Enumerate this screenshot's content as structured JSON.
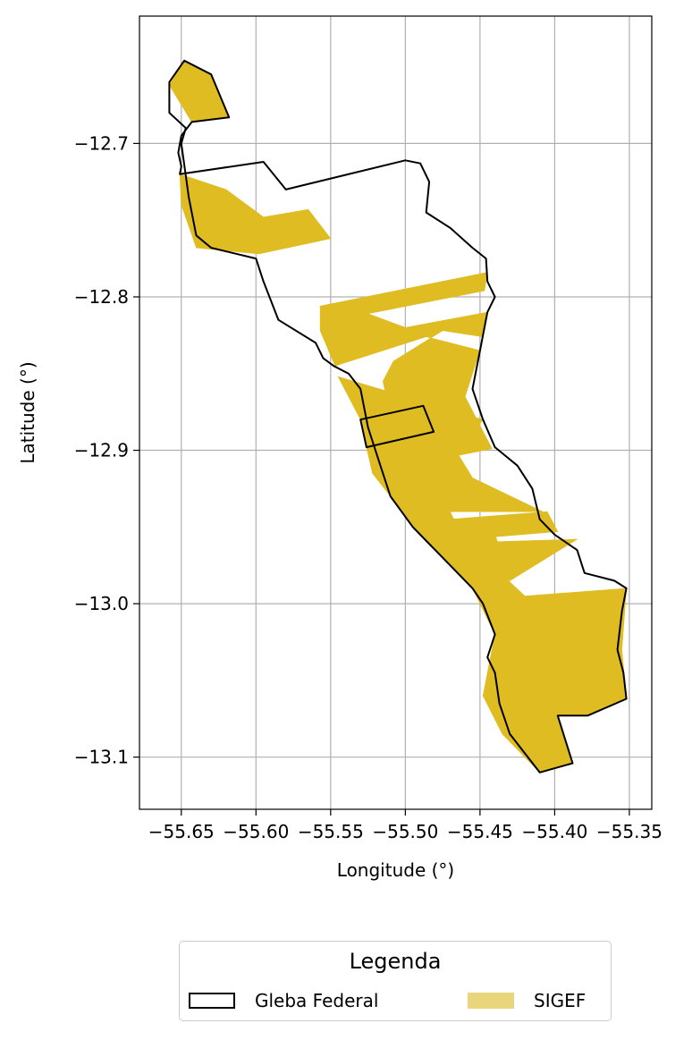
{
  "chart_data": {
    "type": "map",
    "xlabel": "Longitude (°)",
    "ylabel": "Latitude (°)",
    "xlim": [
      -55.678,
      -55.335
    ],
    "ylim": [
      -13.134,
      -12.617
    ],
    "xticks": [
      -55.65,
      -55.6,
      -55.55,
      -55.5,
      -55.45,
      -55.4,
      -55.35
    ],
    "xtick_labels": [
      "−55.65",
      "−55.60",
      "−55.55",
      "−55.50",
      "−55.45",
      "−55.40",
      "−55.35"
    ],
    "yticks": [
      -12.7,
      -12.8,
      -12.9,
      -13.0,
      -13.1
    ],
    "ytick_labels": [
      "−12.7",
      "−12.8",
      "−12.9",
      "−13.0",
      "−13.1"
    ],
    "grid": true,
    "colors": {
      "sigef_fill": "#dfbc22",
      "sigef_legend": "#ead67a",
      "gleba_edge": "#000000",
      "grid": "#b0b0b0"
    },
    "legend": {
      "title": "Legenda",
      "placement": "bottom-outside",
      "entries": [
        {
          "label": "Gleba Federal",
          "style": "outline"
        },
        {
          "label": "SIGEF",
          "style": "fill"
        }
      ]
    },
    "layers": {
      "gleba_federal": [
        [
          [
            -55.648,
            -12.646
          ],
          [
            -55.63,
            -12.655
          ],
          [
            -55.618,
            -12.683
          ],
          [
            -55.643,
            -12.686
          ],
          [
            -55.65,
            -12.695
          ],
          [
            -55.652,
            -12.706
          ],
          [
            -55.65,
            -12.715
          ],
          [
            -55.651,
            -12.72
          ],
          [
            -55.595,
            -12.712
          ],
          [
            -55.58,
            -12.73
          ],
          [
            -55.5,
            -12.711
          ],
          [
            -55.49,
            -12.713
          ],
          [
            -55.484,
            -12.725
          ],
          [
            -55.486,
            -12.745
          ],
          [
            -55.47,
            -12.755
          ],
          [
            -55.455,
            -12.768
          ],
          [
            -55.446,
            -12.775
          ],
          [
            -55.445,
            -12.79
          ],
          [
            -55.44,
            -12.8
          ],
          [
            -55.445,
            -12.81
          ],
          [
            -55.45,
            -12.835
          ],
          [
            -55.455,
            -12.86
          ],
          [
            -55.448,
            -12.88
          ],
          [
            -55.44,
            -12.898
          ],
          [
            -55.425,
            -12.91
          ],
          [
            -55.415,
            -12.925
          ],
          [
            -55.41,
            -12.945
          ],
          [
            -55.4,
            -12.955
          ],
          [
            -55.385,
            -12.965
          ],
          [
            -55.38,
            -12.98
          ],
          [
            -55.36,
            -12.985
          ],
          [
            -55.352,
            -12.99
          ],
          [
            -55.355,
            -13.005
          ],
          [
            -55.358,
            -13.03
          ],
          [
            -55.354,
            -13.045
          ],
          [
            -55.352,
            -13.062
          ],
          [
            -55.378,
            -13.073
          ],
          [
            -55.398,
            -13.073
          ],
          [
            -55.388,
            -13.104
          ],
          [
            -55.41,
            -13.11
          ],
          [
            -55.43,
            -13.085
          ],
          [
            -55.437,
            -13.065
          ],
          [
            -55.44,
            -13.045
          ],
          [
            -55.445,
            -13.035
          ],
          [
            -55.44,
            -13.02
          ],
          [
            -55.448,
            -13.0
          ],
          [
            -55.455,
            -12.99
          ],
          [
            -55.47,
            -12.975
          ],
          [
            -55.485,
            -12.96
          ],
          [
            -55.495,
            -12.95
          ],
          [
            -55.51,
            -12.93
          ],
          [
            -55.515,
            -12.915
          ],
          [
            -55.52,
            -12.9
          ],
          [
            -55.525,
            -12.885
          ],
          [
            -55.53,
            -12.86
          ],
          [
            -55.538,
            -12.85
          ],
          [
            -55.548,
            -12.845
          ],
          [
            -55.555,
            -12.84
          ],
          [
            -55.56,
            -12.83
          ],
          [
            -55.585,
            -12.815
          ],
          [
            -55.595,
            -12.79
          ],
          [
            -55.6,
            -12.775
          ],
          [
            -55.63,
            -12.768
          ],
          [
            -55.64,
            -12.76
          ],
          [
            -55.645,
            -12.735
          ],
          [
            -55.65,
            -12.7
          ],
          [
            -55.647,
            -12.69
          ],
          [
            -55.658,
            -12.68
          ],
          [
            -55.658,
            -12.66
          ],
          [
            -55.648,
            -12.646
          ]
        ],
        [
          [
            -55.53,
            -12.88
          ],
          [
            -55.488,
            -12.871
          ],
          [
            -55.481,
            -12.888
          ],
          [
            -55.526,
            -12.898
          ],
          [
            -55.53,
            -12.88
          ]
        ]
      ],
      "sigef": [
        [
          [
            -55.648,
            -12.646
          ],
          [
            -55.63,
            -12.655
          ],
          [
            -55.618,
            -12.683
          ],
          [
            -55.643,
            -12.686
          ],
          [
            -55.658,
            -12.662
          ]
        ],
        [
          [
            -55.651,
            -12.72
          ],
          [
            -55.62,
            -12.73
          ],
          [
            -55.595,
            -12.748
          ],
          [
            -55.565,
            -12.743
          ],
          [
            -55.55,
            -12.762
          ],
          [
            -55.598,
            -12.772
          ],
          [
            -55.64,
            -12.768
          ],
          [
            -55.65,
            -12.74
          ]
        ],
        [
          [
            -55.557,
            -12.806
          ],
          [
            -55.445,
            -12.784
          ],
          [
            -55.447,
            -12.796
          ],
          [
            -55.525,
            -12.811
          ],
          [
            -55.5,
            -12.82
          ],
          [
            -55.445,
            -12.81
          ],
          [
            -55.448,
            -12.826
          ],
          [
            -55.475,
            -12.822
          ],
          [
            -55.508,
            -12.842
          ],
          [
            -55.515,
            -12.855
          ],
          [
            -55.512,
            -12.868
          ],
          [
            -55.522,
            -12.882
          ],
          [
            -55.526,
            -12.898
          ],
          [
            -55.48,
            -12.888
          ],
          [
            -55.473,
            -12.905
          ],
          [
            -55.442,
            -12.899
          ],
          [
            -55.46,
            -12.865
          ],
          [
            -55.45,
            -12.835
          ],
          [
            -55.486,
            -12.826
          ],
          [
            -55.547,
            -12.845
          ],
          [
            -55.557,
            -12.822
          ]
        ],
        [
          [
            -55.545,
            -12.852
          ],
          [
            -55.53,
            -12.88
          ],
          [
            -55.526,
            -12.898
          ],
          [
            -55.522,
            -12.915
          ],
          [
            -55.51,
            -12.93
          ],
          [
            -55.495,
            -12.95
          ],
          [
            -55.47,
            -12.975
          ],
          [
            -55.455,
            -12.99
          ],
          [
            -55.44,
            -13.02
          ],
          [
            -55.448,
            -13.06
          ],
          [
            -55.435,
            -13.085
          ],
          [
            -55.41,
            -13.11
          ],
          [
            -55.388,
            -13.104
          ],
          [
            -55.398,
            -13.073
          ],
          [
            -55.378,
            -13.073
          ],
          [
            -55.352,
            -13.062
          ],
          [
            -55.355,
            -13.03
          ],
          [
            -55.352,
            -12.99
          ],
          [
            -55.42,
            -12.995
          ],
          [
            -55.442,
            -12.975
          ],
          [
            -55.437,
            -12.963
          ],
          [
            -55.44,
            -12.955
          ],
          [
            -55.465,
            -12.95
          ],
          [
            -55.47,
            -12.94
          ],
          [
            -55.408,
            -12.94
          ],
          [
            -55.455,
            -12.918
          ],
          [
            -55.465,
            -12.902
          ],
          [
            -55.448,
            -12.88
          ]
        ],
        [
          [
            -55.47,
            -12.945
          ],
          [
            -55.405,
            -12.94
          ],
          [
            -55.398,
            -12.953
          ],
          [
            -55.46,
            -12.958
          ]
        ],
        [
          [
            -55.455,
            -12.96
          ],
          [
            -55.385,
            -12.958
          ],
          [
            -55.43,
            -12.985
          ],
          [
            -55.452,
            -12.98
          ]
        ]
      ]
    }
  }
}
